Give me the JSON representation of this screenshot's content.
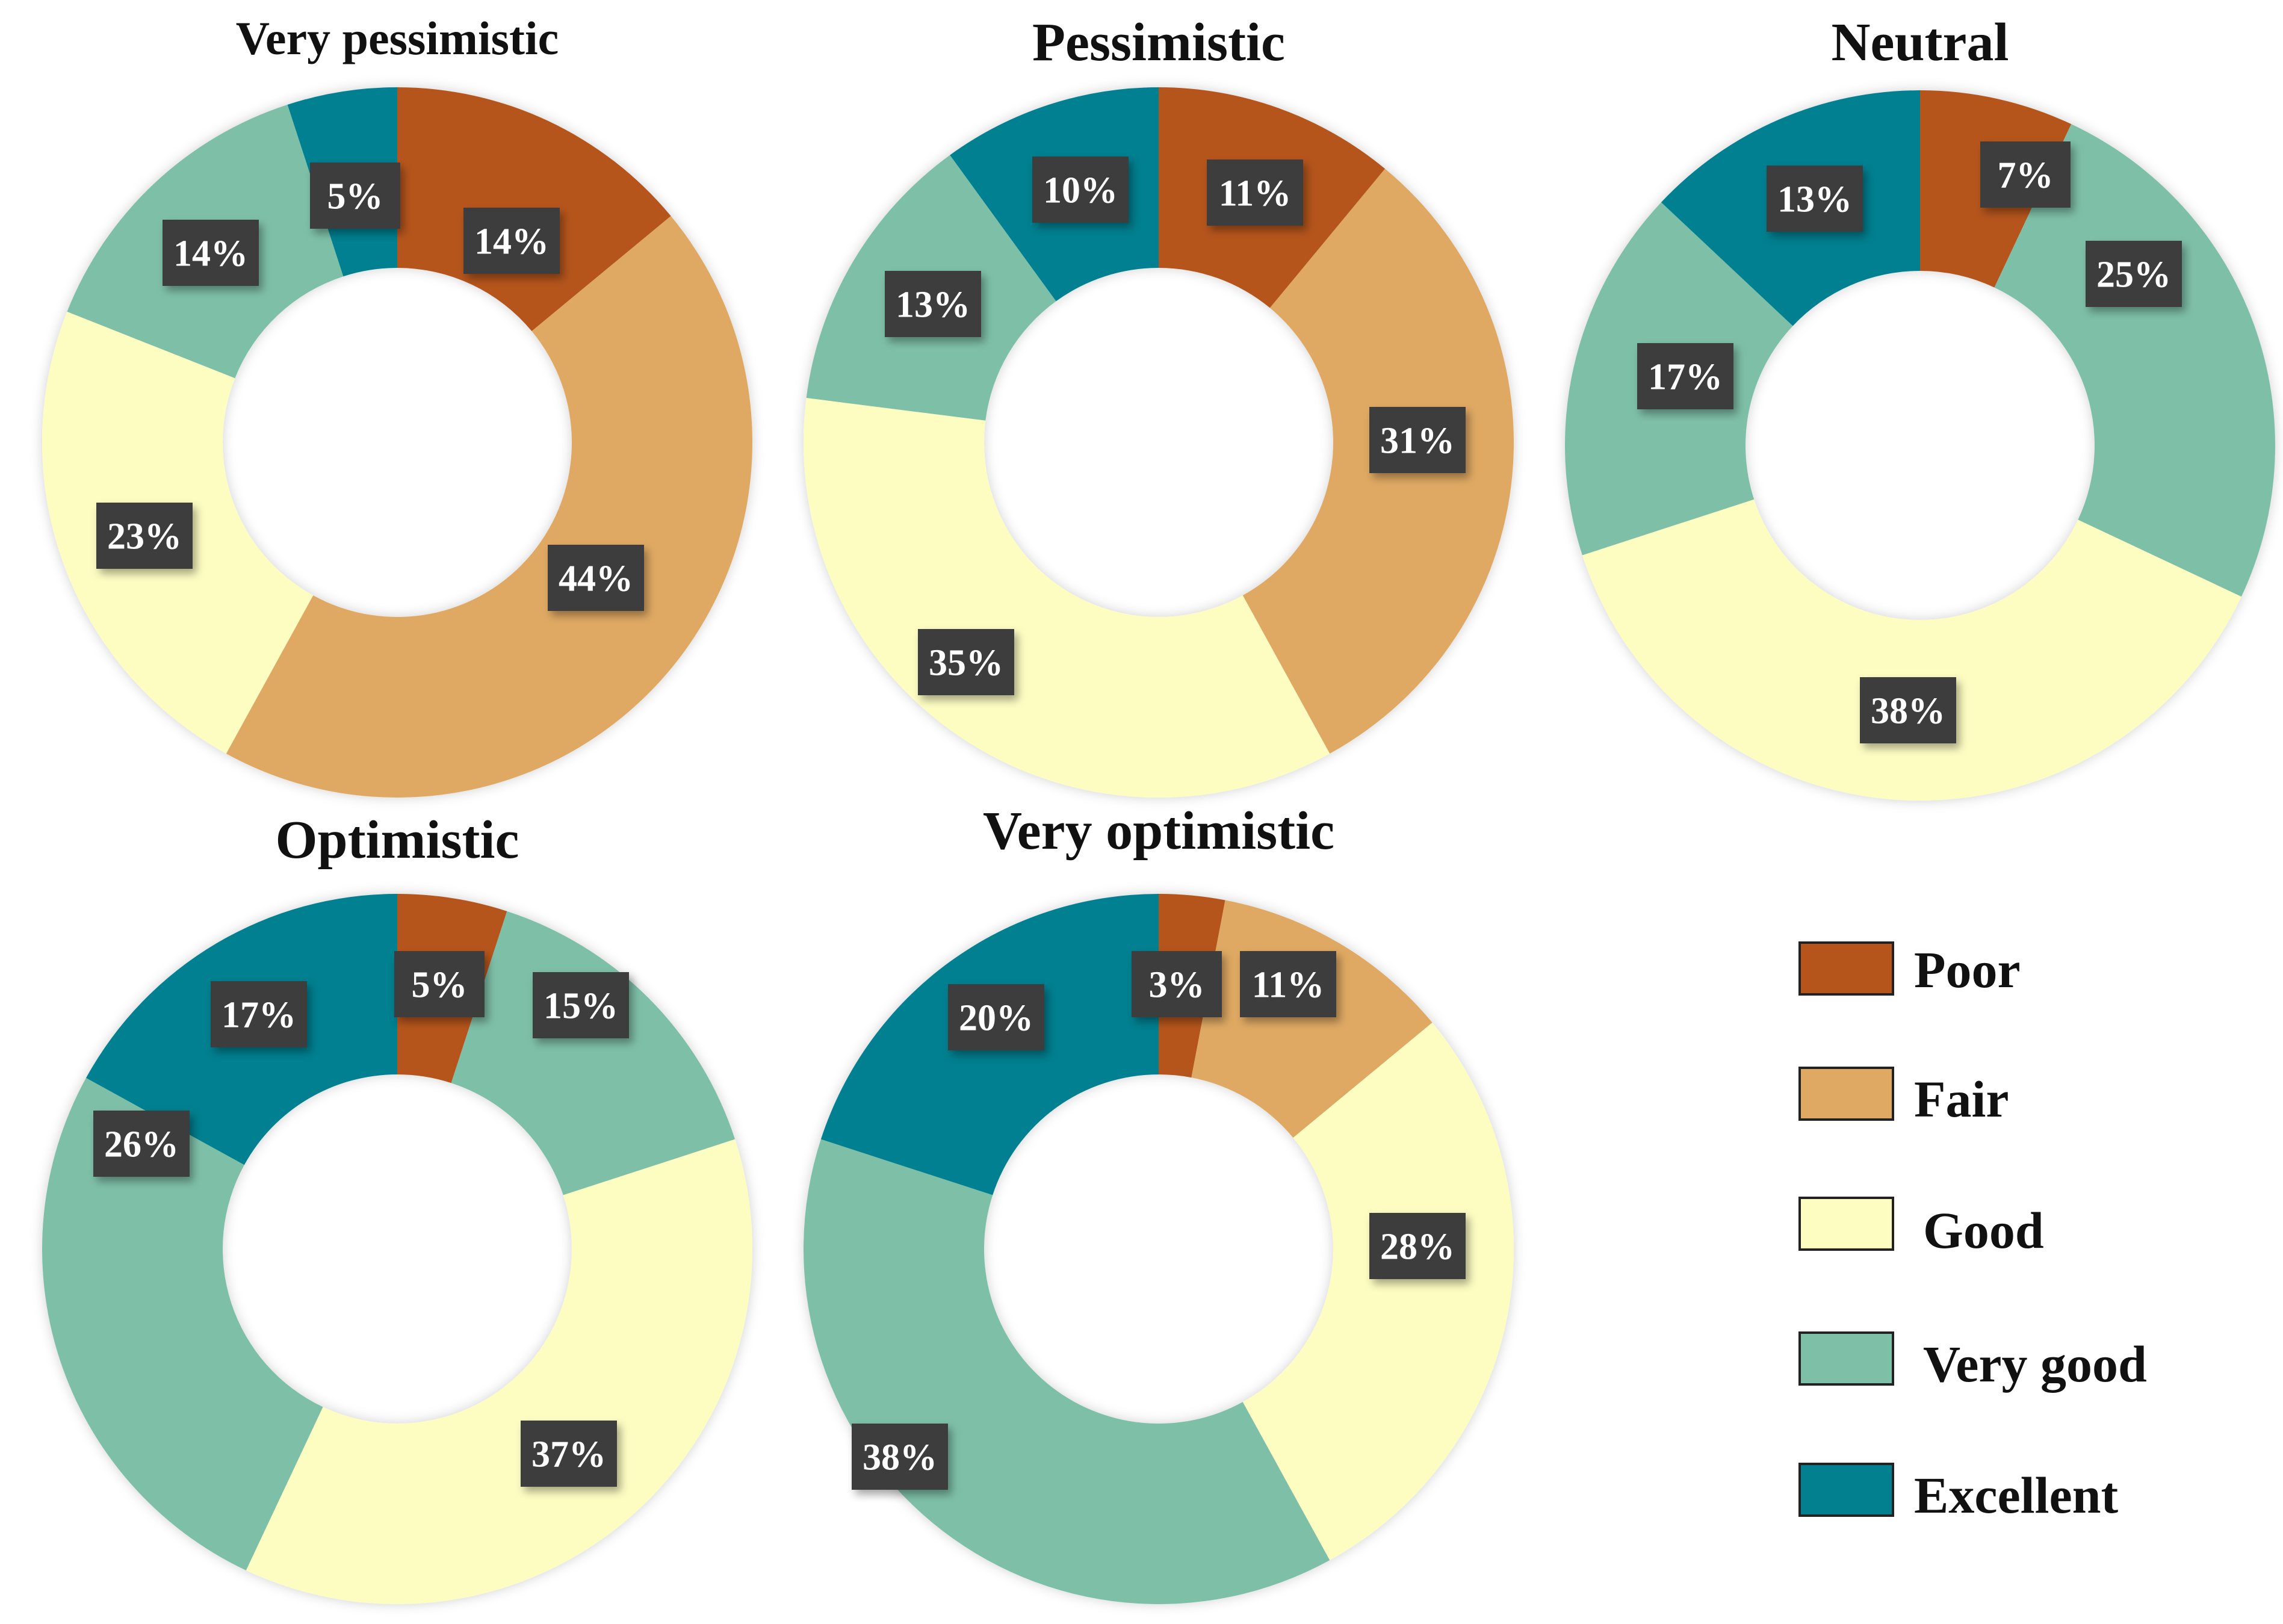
{
  "colors": {
    "Poor": "#B5541B",
    "Fair": "#DFA963",
    "Good": "#FDFDC2",
    "Very good": "#7EBFA8",
    "Excellent": "#028090",
    "label_box": "#3C3C3C",
    "label_text": "#FFFFFF"
  },
  "chart_data": [
    {
      "type": "pie",
      "title": "Very pessimistic",
      "categories": [
        "Poor",
        "Fair",
        "Good",
        "Very good",
        "Excellent"
      ],
      "values": [
        14,
        44,
        23,
        14,
        5
      ],
      "labels": [
        "14%",
        "44%",
        "23%",
        "14%",
        "5%"
      ]
    },
    {
      "type": "pie",
      "title": "Pessimistic",
      "categories": [
        "Poor",
        "Fair",
        "Good",
        "Very good",
        "Excellent"
      ],
      "values": [
        11,
        31,
        35,
        13,
        10
      ],
      "labels": [
        "11%",
        "31%",
        "35%",
        "13%",
        "10%"
      ]
    },
    {
      "type": "pie",
      "title": "Neutral",
      "categories": [
        "Poor",
        "Fair",
        "Good",
        "Very good",
        "Excellent"
      ],
      "values": [
        7,
        0,
        38,
        42,
        13
      ],
      "labels": [
        "7%",
        "",
        "38%",
        "",
        "13%"
      ],
      "extra_labels": {
        "Very good": [
          "25%",
          "17%"
        ]
      }
    },
    {
      "type": "pie",
      "title": "Optimistic",
      "categories": [
        "Poor",
        "Fair",
        "Good",
        "Very good",
        "Excellent"
      ],
      "values": [
        5,
        0,
        37,
        41,
        17
      ],
      "labels": [
        "5%",
        "",
        "37%",
        "",
        "17%"
      ],
      "extra_labels": {
        "Very good": [
          "15%",
          "26%"
        ]
      }
    },
    {
      "type": "pie",
      "title": "Very optimistic",
      "categories": [
        "Poor",
        "Fair",
        "Good",
        "Very good",
        "Excellent"
      ],
      "values": [
        3,
        11,
        28,
        38,
        20
      ],
      "labels": [
        "3%",
        "11%",
        "28%",
        "38%",
        "20%"
      ]
    }
  ],
  "legend": {
    "items": [
      "Poor",
      "Fair",
      "Good",
      "Very good",
      "Excellent"
    ]
  }
}
